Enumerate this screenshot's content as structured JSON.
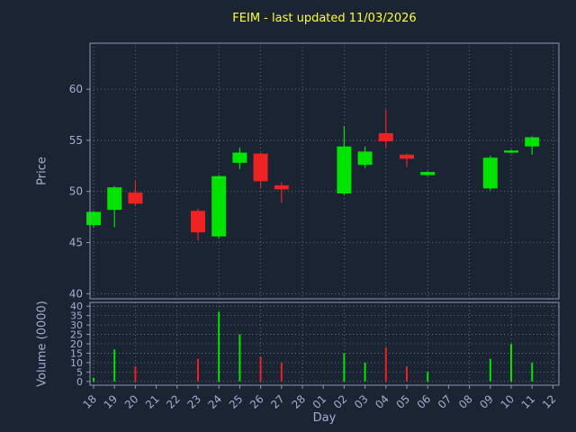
{
  "colors": {
    "background": "#1a2433",
    "title": "#ffff33",
    "tick": "#a4aed2",
    "spine": "#8a97b8",
    "grid": "#c8d0e0",
    "up": "#00e400",
    "down": "#ee2222"
  },
  "chart_data": [
    {
      "type": "candlestick",
      "title": "FEIM - last updated 11/03/2026",
      "xlabel": "Day",
      "ylabel": "Price",
      "x_ticklabels": [
        "18",
        "19",
        "20",
        "21",
        "22",
        "23",
        "24",
        "25",
        "26",
        "27",
        "28",
        "01",
        "02",
        "03",
        "04",
        "05",
        "06",
        "07",
        "08",
        "09",
        "10",
        "11",
        "12"
      ],
      "yticks": [
        40,
        45,
        50,
        55,
        60
      ],
      "ylim": [
        39.5,
        64.5
      ],
      "grid": "dotted, vertical gridlines every second day",
      "legend": "green = close >= open, red = close < open",
      "candles": [
        {
          "day": "18",
          "open": 46.7,
          "high": 48.1,
          "low": 46.5,
          "close": 48.0
        },
        {
          "day": "19",
          "open": 48.2,
          "high": 50.5,
          "low": 46.5,
          "close": 50.4
        },
        {
          "day": "20",
          "open": 49.9,
          "high": 51.0,
          "low": 48.6,
          "close": 48.8
        },
        {
          "day": "23",
          "open": 48.1,
          "high": 48.3,
          "low": 45.2,
          "close": 46.0
        },
        {
          "day": "24",
          "open": 45.6,
          "high": 51.6,
          "low": 45.4,
          "close": 51.5
        },
        {
          "day": "25",
          "open": 52.8,
          "high": 54.3,
          "low": 52.2,
          "close": 53.8
        },
        {
          "day": "26",
          "open": 53.7,
          "high": 53.8,
          "low": 50.3,
          "close": 51.0
        },
        {
          "day": "27",
          "open": 50.6,
          "high": 50.9,
          "low": 48.9,
          "close": 50.2
        },
        {
          "day": "02",
          "open": 49.8,
          "high": 56.4,
          "low": 49.6,
          "close": 54.4
        },
        {
          "day": "03",
          "open": 52.6,
          "high": 54.4,
          "low": 52.3,
          "close": 53.9
        },
        {
          "day": "04",
          "open": 55.7,
          "high": 58.0,
          "low": 54.3,
          "close": 54.9
        },
        {
          "day": "05",
          "open": 53.6,
          "high": 53.7,
          "low": 52.4,
          "close": 53.2
        },
        {
          "day": "06",
          "open": 51.6,
          "high": 52.0,
          "low": 51.5,
          "close": 51.9
        },
        {
          "day": "09",
          "open": 50.3,
          "high": 53.5,
          "low": 50.1,
          "close": 53.3
        },
        {
          "day": "10",
          "open": 53.8,
          "high": 54.1,
          "low": 53.7,
          "close": 54.0
        },
        {
          "day": "11",
          "open": 54.4,
          "high": 55.4,
          "low": 53.6,
          "close": 55.3
        }
      ]
    },
    {
      "type": "bar",
      "ylabel": "Volume (0000)",
      "yticks": [
        0,
        5,
        10,
        15,
        20,
        25,
        30,
        35,
        40
      ],
      "ylim": [
        -2,
        42
      ],
      "bars": [
        {
          "day": "18",
          "value": 2,
          "direction": "up"
        },
        {
          "day": "19",
          "value": 17,
          "direction": "up"
        },
        {
          "day": "20",
          "value": 8,
          "direction": "down"
        },
        {
          "day": "23",
          "value": 12,
          "direction": "down"
        },
        {
          "day": "24",
          "value": 37,
          "direction": "up"
        },
        {
          "day": "25",
          "value": 25,
          "direction": "up"
        },
        {
          "day": "26",
          "value": 13,
          "direction": "down"
        },
        {
          "day": "27",
          "value": 10,
          "direction": "down"
        },
        {
          "day": "02",
          "value": 15,
          "direction": "up"
        },
        {
          "day": "03",
          "value": 10,
          "direction": "up"
        },
        {
          "day": "04",
          "value": 18,
          "direction": "down"
        },
        {
          "day": "05",
          "value": 8,
          "direction": "down"
        },
        {
          "day": "06",
          "value": 5,
          "direction": "up"
        },
        {
          "day": "09",
          "value": 12,
          "direction": "up"
        },
        {
          "day": "10",
          "value": 20,
          "direction": "up"
        },
        {
          "day": "11",
          "value": 10,
          "direction": "up"
        }
      ]
    }
  ]
}
